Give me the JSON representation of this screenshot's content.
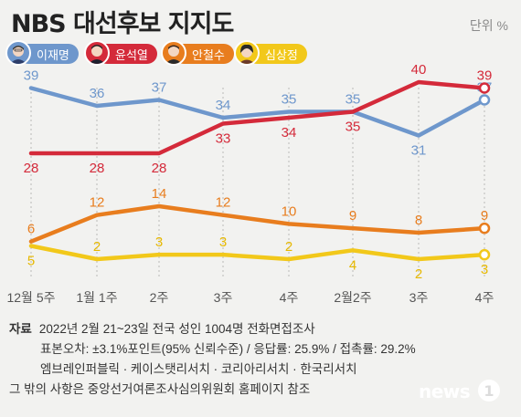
{
  "title": "NBS 대선후보 지지도",
  "unit": "단위 %",
  "legend": [
    {
      "name": "이재명",
      "color": "#6e97cc",
      "icon": "candidate-portrait"
    },
    {
      "name": "윤석열",
      "color": "#d42a3a",
      "icon": "candidate-portrait"
    },
    {
      "name": "안철수",
      "color": "#e87d1e",
      "icon": "candidate-portrait"
    },
    {
      "name": "심상정",
      "color": "#f2c81a",
      "icon": "candidate-portrait"
    }
  ],
  "chart_data": {
    "type": "line",
    "title": "NBS 대선후보 지지도",
    "xlabel": "",
    "ylabel": "",
    "categories": [
      "12월 5주",
      "1월 1주",
      "2주",
      "3주",
      "4주",
      "2월2주",
      "3주",
      "4주"
    ],
    "series": [
      {
        "name": "이재명",
        "color": "#6e97cc",
        "values": [
          39,
          36,
          37,
          34,
          35,
          35,
          31,
          37
        ]
      },
      {
        "name": "윤석열",
        "color": "#d42a3a",
        "values": [
          28,
          28,
          28,
          33,
          34,
          35,
          40,
          39
        ]
      },
      {
        "name": "안철수",
        "color": "#e87d1e",
        "values": [
          6,
          12,
          14,
          12,
          10,
          9,
          8,
          9
        ]
      },
      {
        "name": "심상정",
        "color": "#f2c81a",
        "values": [
          5,
          2,
          3,
          3,
          2,
          4,
          2,
          3
        ]
      }
    ],
    "grid": "vertical-dashed"
  },
  "footer": {
    "source_label": "자료",
    "source_text": "2022년 2월 21~23일 전국 성인 1004명 전화면접조사",
    "line2": "표본오차: ±3.1%포인트(95% 신뢰수준) / 응답률: 25.9% / 접촉률: 29.2%",
    "line3": "엠브레인퍼블릭 · 케이스탯리서치 · 코리아리서치 · 한국리서치",
    "line4": "그 밖의 사항은 중앙선거여론조사심의위원회 홈페이지 참조"
  },
  "logo": {
    "text": "news",
    "badge": "1",
    "icon": "news1-logo"
  }
}
